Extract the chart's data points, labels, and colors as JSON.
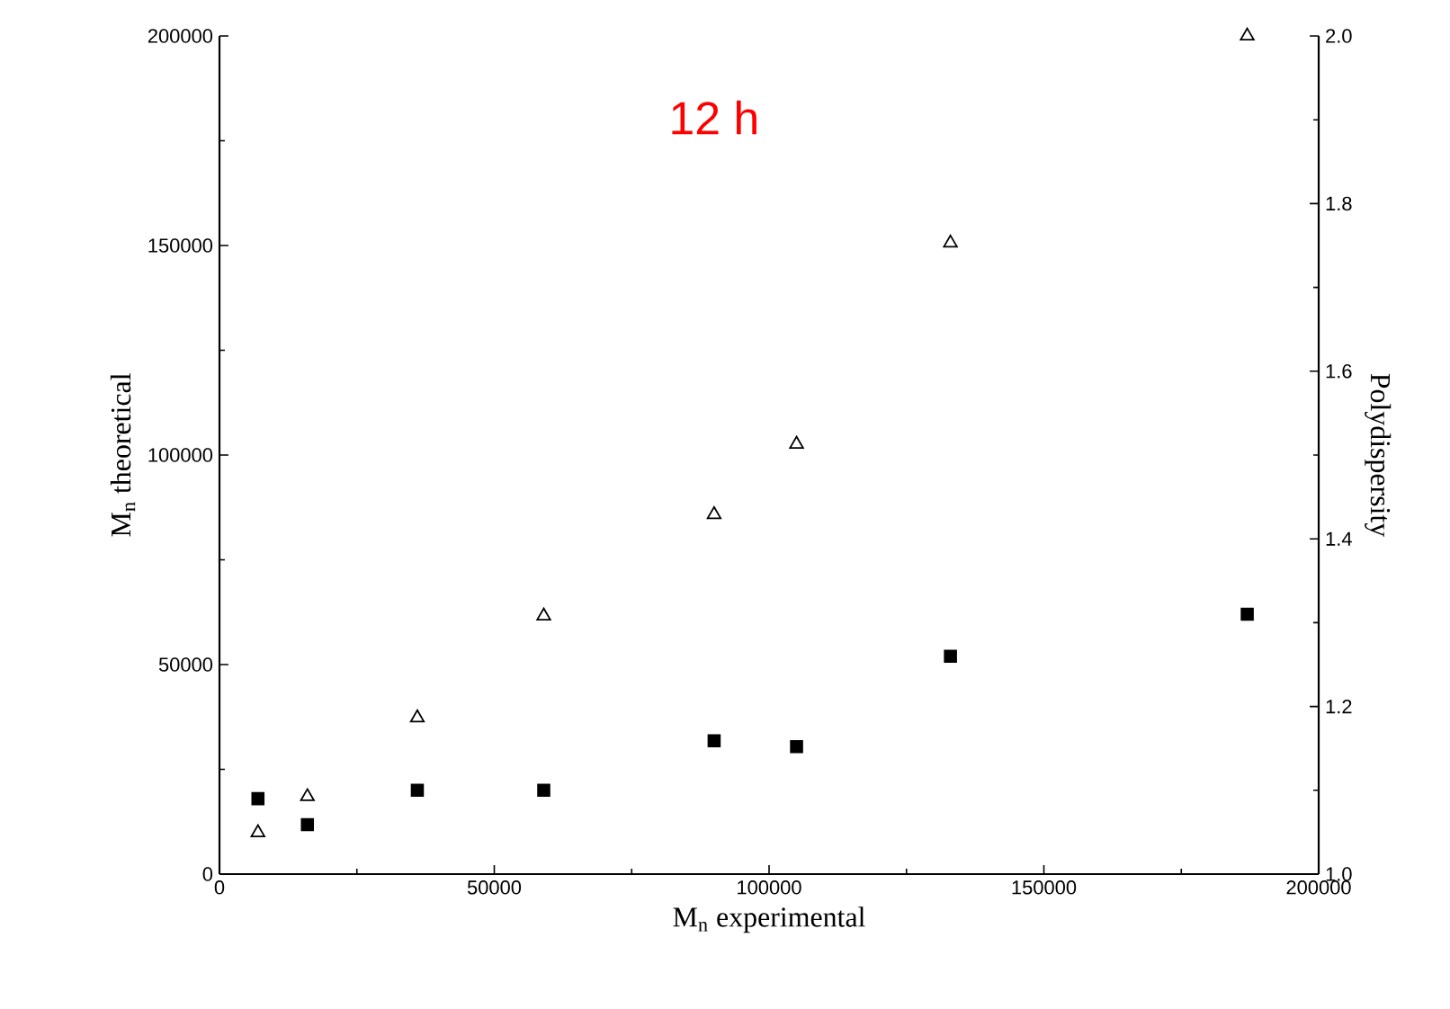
{
  "chart_data": {
    "type": "scatter",
    "title": "12 h",
    "xlabel": "M$_{n}$ experimental",
    "ylabel": "M$_{n}$ theoretical",
    "y2label": "Polydispersity",
    "x": [
      7000,
      16000,
      36000,
      59000,
      90000,
      105000,
      133000,
      187000
    ],
    "series": [
      {
        "color": "#000000",
        "marker": "triangle",
        "axis": "y",
        "values": [
          9900,
          18500,
          37300,
          61600,
          85800,
          102600,
          150600,
          200000
        ]
      },
      {
        "color": "#000000",
        "marker": "square",
        "axis": "y2",
        "values": [
          1.09,
          1.059,
          1.1,
          1.1,
          1.159,
          1.152,
          1.26,
          1.31
        ]
      }
    ],
    "xlim": [
      0,
      200000
    ],
    "xticks": [
      0,
      50000,
      100000,
      150000,
      200000
    ],
    "ylim": [
      0,
      200000
    ],
    "yticks": [
      0,
      50000,
      100000,
      150000,
      200000
    ],
    "y2lim": [
      1.0,
      2.0
    ],
    "y2ticks": [
      {
        "value": 1.0,
        "label": "1.0"
      },
      {
        "value": 1.2,
        "label": "1.2"
      },
      {
        "value": 1.4,
        "label": "1.4"
      },
      {
        "value": 1.6,
        "label": "1.6"
      },
      {
        "value": 1.8,
        "label": "1.8"
      },
      {
        "value": 2.0,
        "label": "2.0"
      }
    ]
  }
}
